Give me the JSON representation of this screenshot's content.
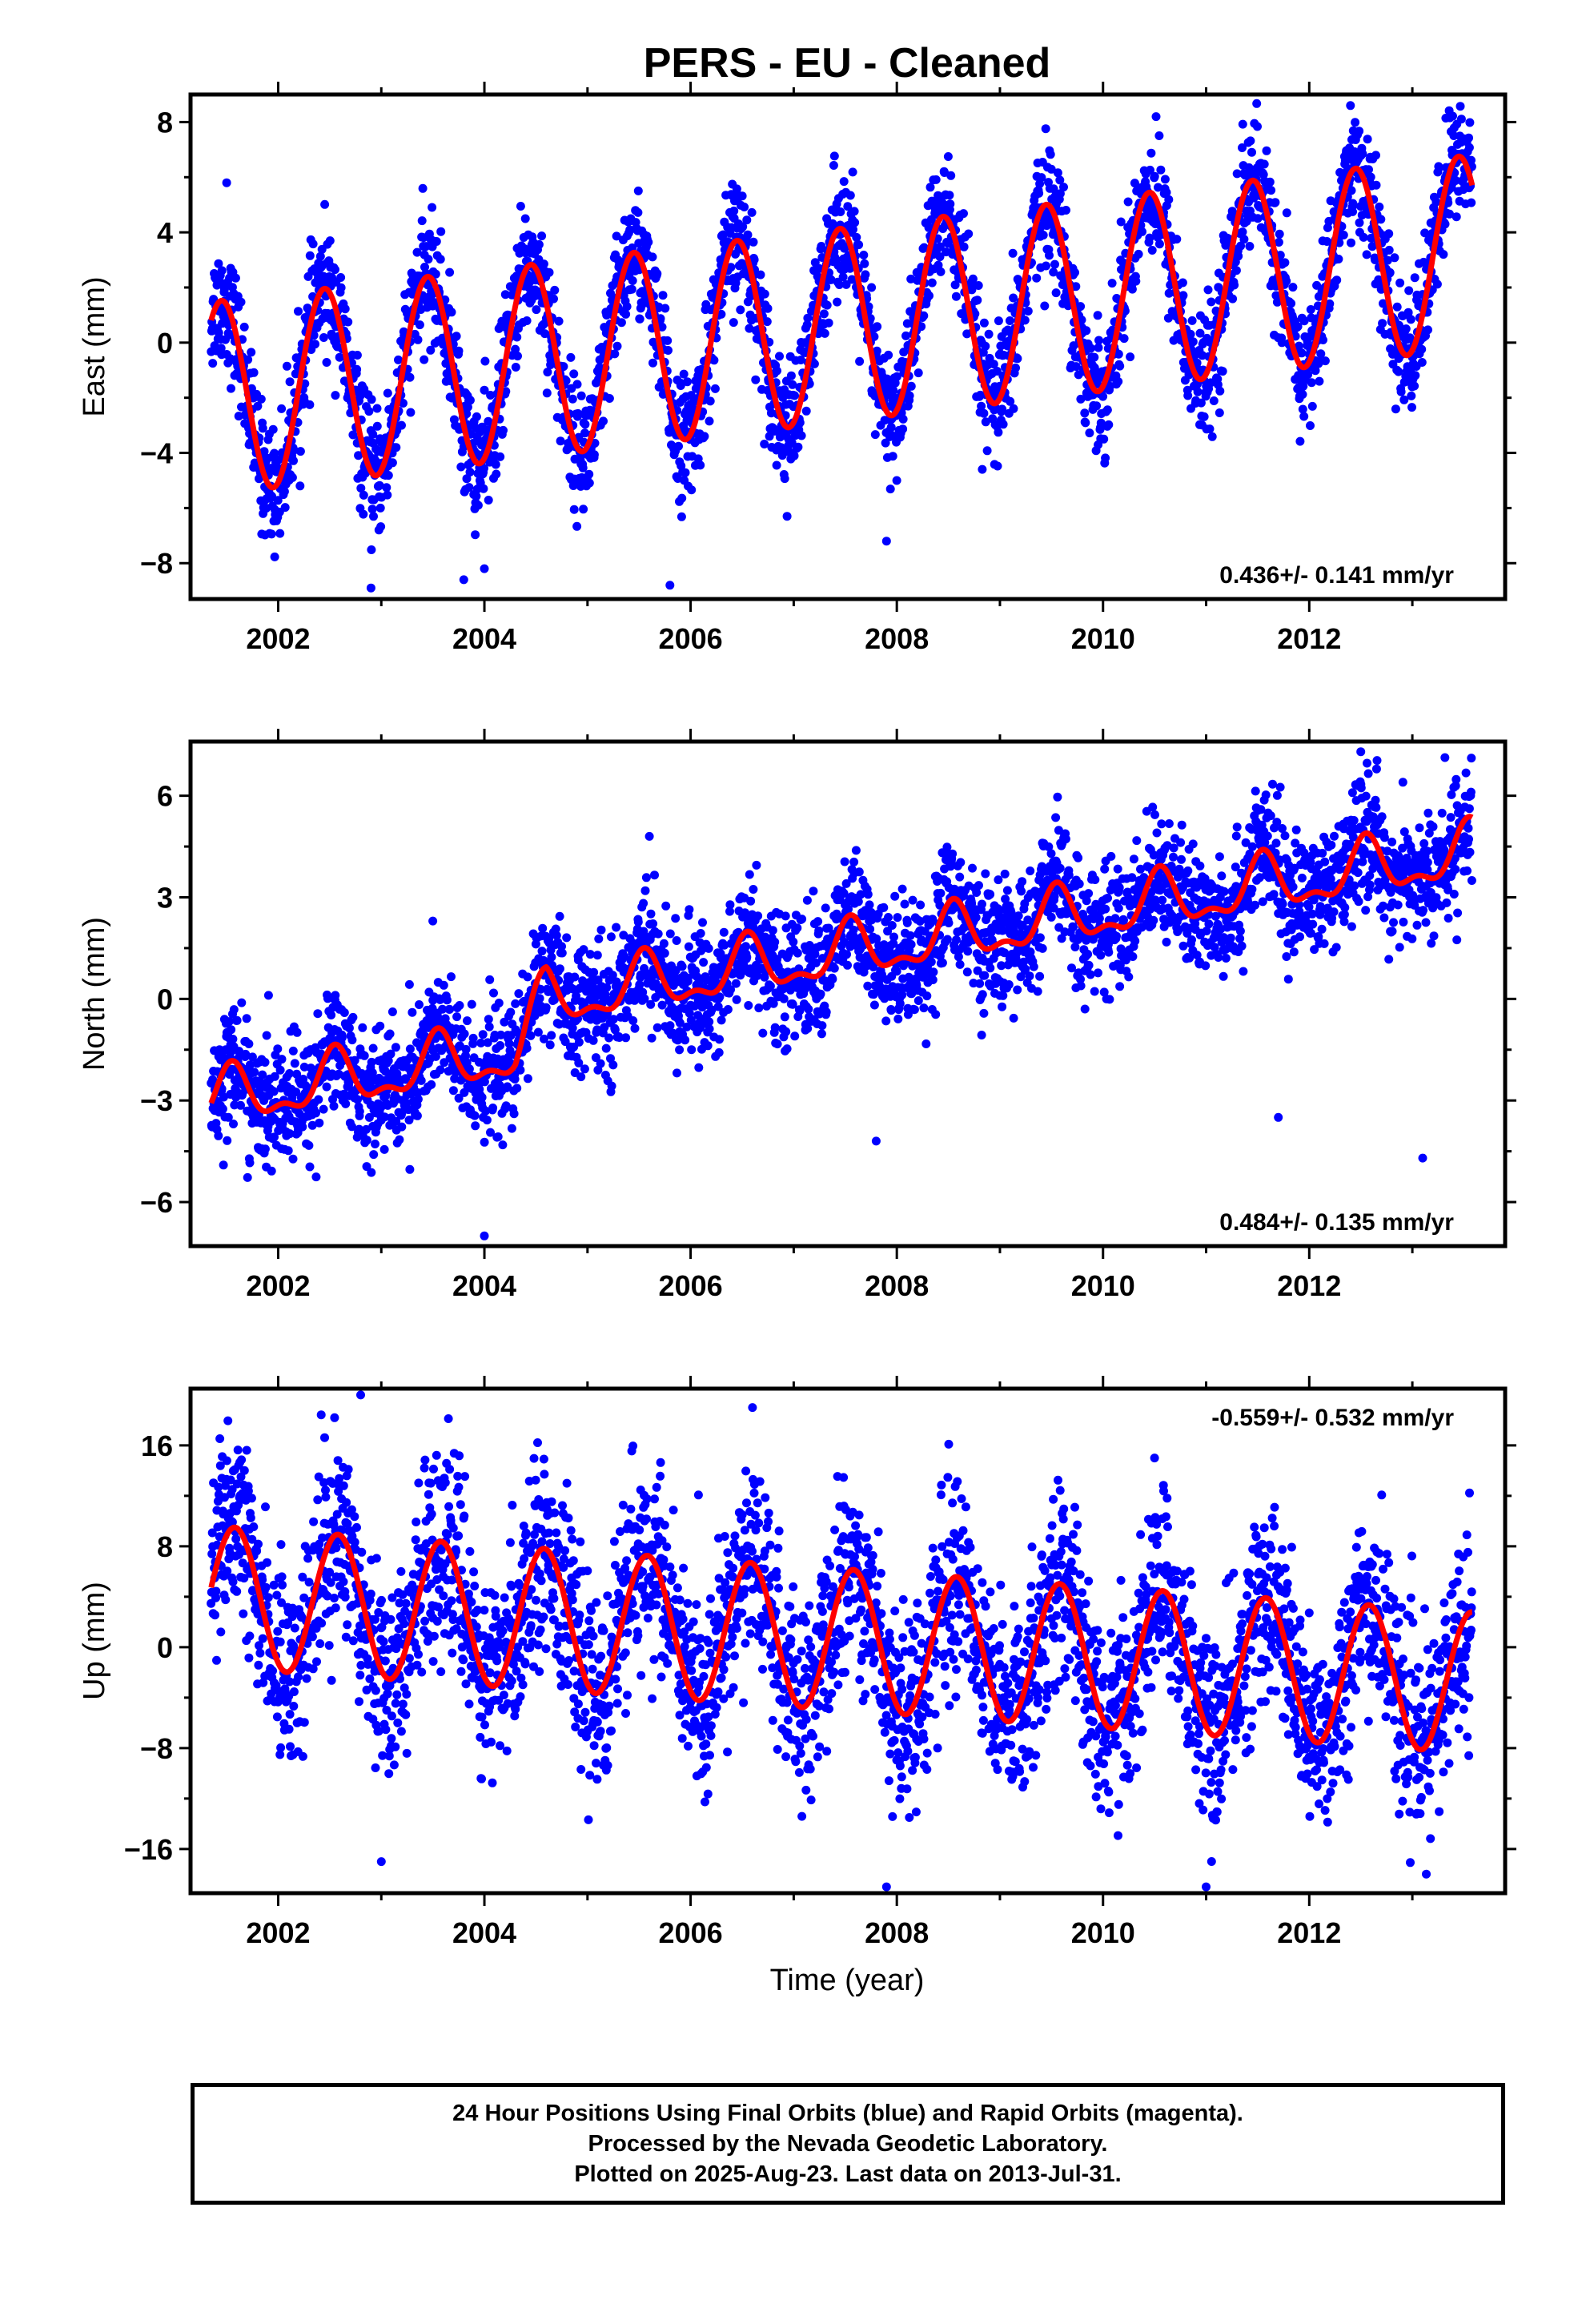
{
  "title": "PERS  - EU - Cleaned",
  "colors": {
    "points": "#0000ff",
    "fit": "#ff0000",
    "frame": "#000000"
  },
  "x_axis": {
    "label": "Time (year)",
    "ticks": [
      2002,
      2004,
      2006,
      2008,
      2010,
      2012
    ]
  },
  "footer": {
    "line1": "24 Hour Positions Using Final Orbits (blue) and Rapid Orbits (magenta).",
    "line2": "Processed by the Nevada Geodetic Laboratory.",
    "line3": "Plotted on 2025-Aug-23. Last data on 2013-Jul-31."
  },
  "chart_data": [
    {
      "type": "scatter",
      "panel": "east",
      "ylabel": "East (mm)",
      "rate_text": "0.436+/- 0.141 mm/yr",
      "rate_position": "bottom-right",
      "xlim": [
        2001.15,
        2013.9
      ],
      "ylim": [
        -9.3,
        9.0
      ],
      "yticks": [
        8,
        4,
        0,
        -4,
        -8
      ],
      "data_range": [
        2001.35,
        2013.58
      ],
      "fit": {
        "type": "line",
        "trend_mm_per_yr": 0.436,
        "annual_amplitude": 3.5,
        "annual_peak_phase": 0.45,
        "offset_at_2001_4": -2.0
      },
      "points": {
        "color": "blue",
        "scatter_sd": 1.1,
        "outliers": [
          [
            2001.5,
            5.8
          ],
          [
            2002.9,
            -8.9
          ],
          [
            2003.8,
            -8.6
          ],
          [
            2004.0,
            -8.2
          ],
          [
            2005.8,
            -8.8
          ],
          [
            2007.9,
            -7.2
          ],
          [
            2012.4,
            8.6
          ]
        ]
      }
    },
    {
      "type": "scatter",
      "panel": "north",
      "ylabel": "North (mm)",
      "rate_text": "0.484+/- 0.135 mm/yr",
      "rate_position": "bottom-right",
      "xlim": [
        2001.15,
        2013.9
      ],
      "ylim": [
        -7.3,
        7.6
      ],
      "yticks": [
        6,
        3,
        0,
        -3,
        -6
      ],
      "data_range": [
        2001.35,
        2013.58
      ],
      "fit": {
        "type": "line",
        "trend_mm_per_yr": 0.484,
        "annual_amplitude": 0.75,
        "annual_peak_phase": 0.55,
        "semiannual_amplitude": 0.35,
        "offset_at_2001_4": -3.0,
        "step_at_2004_3": 1.4
      },
      "points": {
        "color": "blue",
        "scatter_sd": 0.9,
        "outliers": [
          [
            2003.5,
            2.3
          ],
          [
            2005.6,
            4.8
          ],
          [
            2004.0,
            -7.0
          ],
          [
            2007.8,
            -4.2
          ],
          [
            2011.7,
            -3.5
          ],
          [
            2013.1,
            -4.7
          ],
          [
            2012.5,
            7.3
          ]
        ]
      }
    },
    {
      "type": "scatter",
      "panel": "up",
      "ylabel": "Up (mm)",
      "rate_text": "-0.559+/- 0.532 mm/yr",
      "rate_position": "top-right",
      "xlim": [
        2001.15,
        2013.9
      ],
      "ylim": [
        -19.5,
        20.5
      ],
      "yticks": [
        16,
        8,
        0,
        -8,
        -16
      ],
      "data_range": [
        2001.35,
        2013.58
      ],
      "fit": {
        "type": "line",
        "trend_mm_per_yr": -0.559,
        "annual_amplitude": 5.6,
        "annual_peak_phase": 0.58,
        "offset_at_2001_4": 4.0
      },
      "points": {
        "color": "blue",
        "scatter_sd": 3.8,
        "outliers": [
          [
            2002.8,
            20.0
          ],
          [
            2003.0,
            -17.0
          ],
          [
            2006.6,
            19.0
          ],
          [
            2007.9,
            -19.0
          ],
          [
            2010.5,
            15.0
          ],
          [
            2011.0,
            -19.0
          ]
        ]
      }
    }
  ]
}
